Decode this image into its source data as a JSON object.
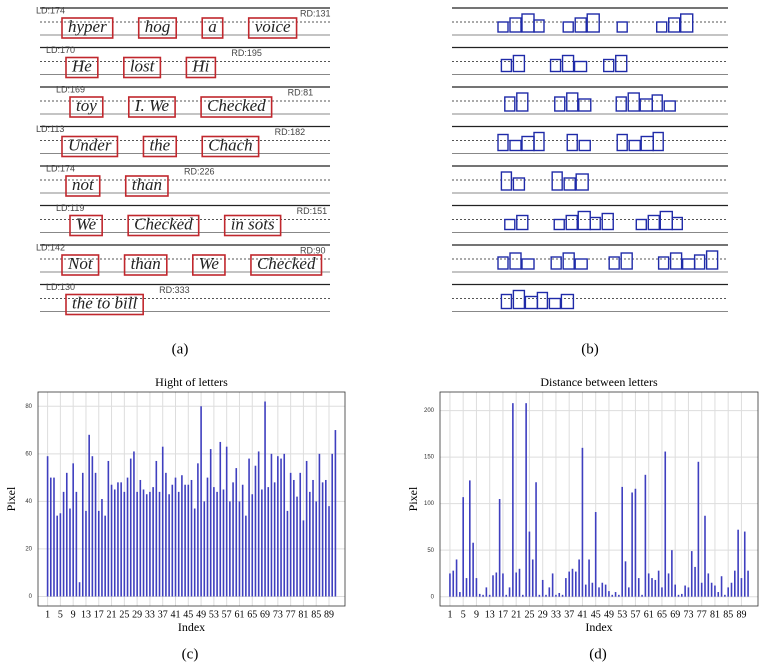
{
  "panels": [
    "(a)",
    "(b)",
    "(c)",
    "(d)"
  ],
  "panel_a": {
    "lines": [
      {
        "ld": "LD:174",
        "words": [
          "hyper",
          "hog",
          "a",
          "voice"
        ],
        "rd": "RD:131"
      },
      {
        "ld": "LD:170",
        "words": [
          "He",
          "lost",
          "Hi"
        ],
        "rd": "RD:195"
      },
      {
        "ld": "LD:169",
        "words": [
          "toy",
          "I. We",
          "Checked"
        ],
        "rd": "RD:81"
      },
      {
        "ld": "LD:113",
        "words": [
          "Under",
          "the",
          "Chach"
        ],
        "rd": "RD:182"
      },
      {
        "ld": "LD:174",
        "words": [
          "not",
          "than"
        ],
        "rd": "RD:226"
      },
      {
        "ld": "LD:119",
        "words": [
          "We",
          "Checked",
          "in sots"
        ],
        "rd": "RD:151"
      },
      {
        "ld": "LD:142",
        "words": [
          "Not",
          "than",
          "We",
          "Checked"
        ],
        "rd": "RD:90"
      },
      {
        "ld": "LD:130",
        "words": [
          "the to bill"
        ],
        "rd": "RD:333"
      }
    ]
  },
  "chart_data": [
    {
      "type": "bar",
      "title": "Hight of letters",
      "xlabel": "Index",
      "ylabel": "Pixel",
      "color": "#3f3fbf",
      "grid": true,
      "x": [
        1,
        2,
        3,
        4,
        5,
        6,
        7,
        8,
        9,
        10,
        11,
        12,
        13,
        14,
        15,
        16,
        17,
        18,
        19,
        20,
        21,
        22,
        23,
        24,
        25,
        26,
        27,
        28,
        29,
        30,
        31,
        32,
        33,
        34,
        35,
        36,
        37,
        38,
        39,
        40,
        41,
        42,
        43,
        44,
        45,
        46,
        47,
        48,
        49,
        50,
        51,
        52,
        53,
        54,
        55,
        56,
        57,
        58,
        59,
        60,
        61,
        62,
        63,
        64,
        65,
        66,
        67,
        68,
        69,
        70,
        71,
        72,
        73,
        74,
        75,
        76,
        77,
        78,
        79,
        80,
        81,
        82,
        83,
        84,
        85,
        86,
        87,
        88,
        89,
        90,
        91
      ],
      "values": [
        59,
        50,
        50,
        34,
        35,
        44,
        52,
        37,
        56,
        44,
        6,
        52,
        36,
        68,
        59,
        52,
        36,
        41,
        34,
        57,
        47,
        45,
        48,
        48,
        44,
        50,
        58,
        61,
        44,
        49,
        45,
        43,
        44,
        46,
        57,
        44,
        63,
        52,
        43,
        47,
        50,
        44,
        51,
        47,
        47,
        49,
        37,
        56,
        80,
        40,
        50,
        62,
        46,
        44,
        65,
        45,
        63,
        40,
        48,
        54,
        40,
        47,
        34,
        58,
        43,
        55,
        61,
        45,
        82,
        46,
        60,
        48,
        59,
        58,
        60,
        36,
        52,
        49,
        42,
        52,
        32,
        57,
        44,
        49,
        40,
        60,
        48,
        49,
        38,
        60,
        70
      ],
      "xlim": [
        -2,
        94
      ],
      "ylim": [
        -4,
        86
      ],
      "xticks": [
        1,
        5,
        9,
        13,
        17,
        21,
        25,
        29,
        33,
        37,
        41,
        45,
        49,
        53,
        57,
        61,
        65,
        69,
        73,
        77,
        81,
        85,
        89
      ],
      "yticks": [
        0,
        20,
        40,
        60,
        80
      ]
    },
    {
      "type": "bar",
      "title": "Distance between letters",
      "xlabel": "Index",
      "ylabel": "Pixel",
      "color": "#3f3fbf",
      "grid": true,
      "x": [
        1,
        2,
        3,
        4,
        5,
        6,
        7,
        8,
        9,
        10,
        11,
        12,
        13,
        14,
        15,
        16,
        17,
        18,
        19,
        20,
        21,
        22,
        23,
        24,
        25,
        26,
        27,
        28,
        29,
        30,
        31,
        32,
        33,
        34,
        35,
        36,
        37,
        38,
        39,
        40,
        41,
        42,
        43,
        44,
        45,
        46,
        47,
        48,
        49,
        50,
        51,
        52,
        53,
        54,
        55,
        56,
        57,
        58,
        59,
        60,
        61,
        62,
        63,
        64,
        65,
        66,
        67,
        68,
        69,
        70,
        71,
        72,
        73,
        74,
        75,
        76,
        77,
        78,
        79,
        80,
        81,
        82,
        83,
        84,
        85,
        86,
        87,
        88,
        89,
        90,
        91
      ],
      "values": [
        25,
        28,
        40,
        5,
        107,
        20,
        125,
        58,
        20,
        3,
        2,
        10,
        2,
        23,
        26,
        105,
        25,
        2,
        10,
        208,
        26,
        30,
        2,
        208,
        70,
        40,
        123,
        2,
        18,
        2,
        10,
        25,
        2,
        4,
        2,
        20,
        27,
        30,
        27,
        40,
        160,
        13,
        40,
        15,
        91,
        10,
        15,
        13,
        6,
        2,
        5,
        2,
        118,
        38,
        10,
        112,
        116,
        20,
        2,
        131,
        25,
        20,
        18,
        28,
        10,
        156,
        25,
        50,
        13,
        2,
        3,
        12,
        10,
        49,
        32,
        145,
        15,
        87,
        25,
        15,
        12,
        5,
        22,
        2,
        10,
        15,
        28,
        72,
        20,
        70,
        28
      ],
      "xlim": [
        -2,
        94
      ],
      "ylim": [
        -10,
        220
      ],
      "xticks": [
        1,
        5,
        9,
        13,
        17,
        21,
        25,
        29,
        33,
        37,
        41,
        45,
        49,
        53,
        57,
        61,
        65,
        69,
        73,
        77,
        81,
        85,
        89
      ],
      "yticks": [
        0,
        50,
        100,
        150,
        200
      ]
    }
  ]
}
